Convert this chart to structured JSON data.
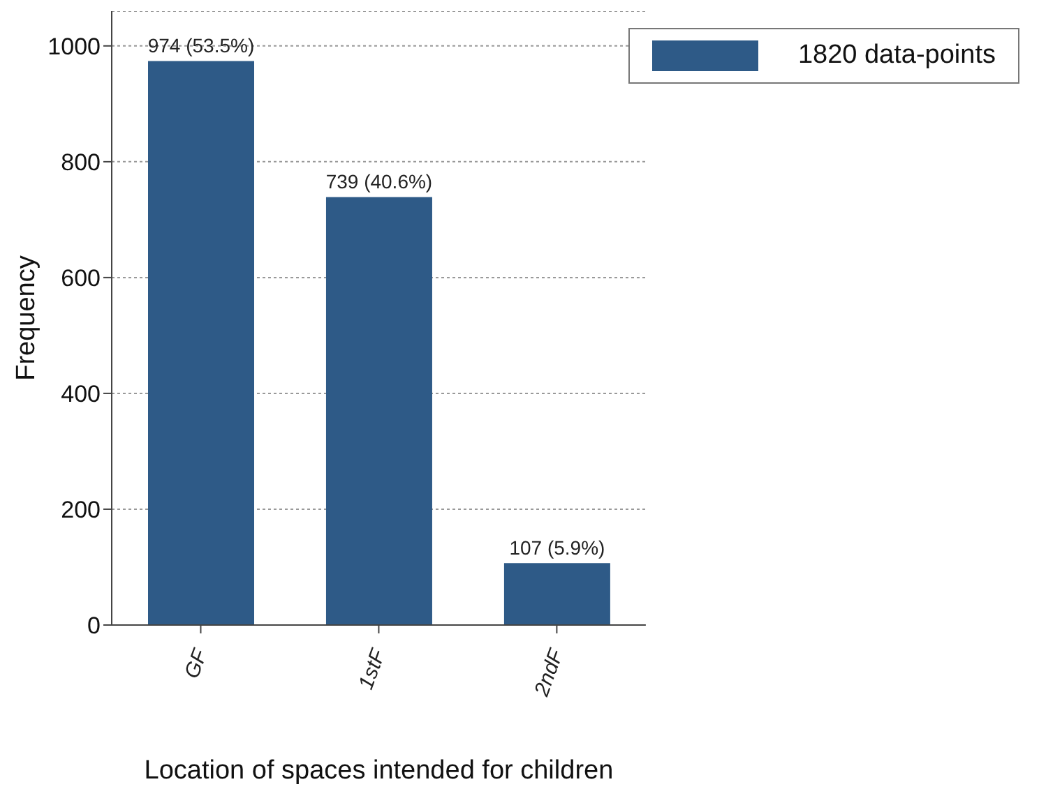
{
  "chart_data": {
    "type": "bar",
    "xlabel": "Location of spaces intended for children",
    "ylabel": "Frequency",
    "categories": [
      "GF",
      "1stF",
      "2ndF"
    ],
    "series": [
      {
        "name": "1820 data-points",
        "color": "#2e5a87",
        "values": [
          974,
          739,
          107
        ],
        "value_labels": [
          "974 (53.5%)",
          "739 (40.6%)",
          "107 (5.9%)"
        ]
      }
    ],
    "ylim": [
      0,
      1060
    ],
    "yticks": [
      0,
      200,
      400,
      600,
      800,
      1000
    ],
    "grid": "y",
    "legend": "top right"
  }
}
